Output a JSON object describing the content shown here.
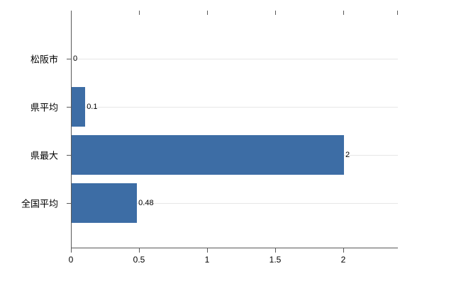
{
  "chart_data": {
    "type": "bar",
    "orientation": "horizontal",
    "title": "",
    "xlabel": "",
    "ylabel": "",
    "categories": [
      "松阪市",
      "県平均",
      "県最大",
      "全国平均"
    ],
    "values": [
      0,
      0.1,
      2,
      0.48
    ],
    "value_labels": [
      "0",
      "0.1",
      "2",
      "0.48"
    ],
    "x_ticks": [
      0,
      0.5,
      1,
      1.5,
      2
    ],
    "x_tick_labels": [
      "0",
      "0.5",
      "1",
      "1.5",
      "2"
    ],
    "xlim": [
      0,
      2.4
    ],
    "grid": true,
    "legend": false,
    "bar_color": "#3d6da5",
    "axis_color": "#595959",
    "grid_color": "#e6e6e6"
  }
}
